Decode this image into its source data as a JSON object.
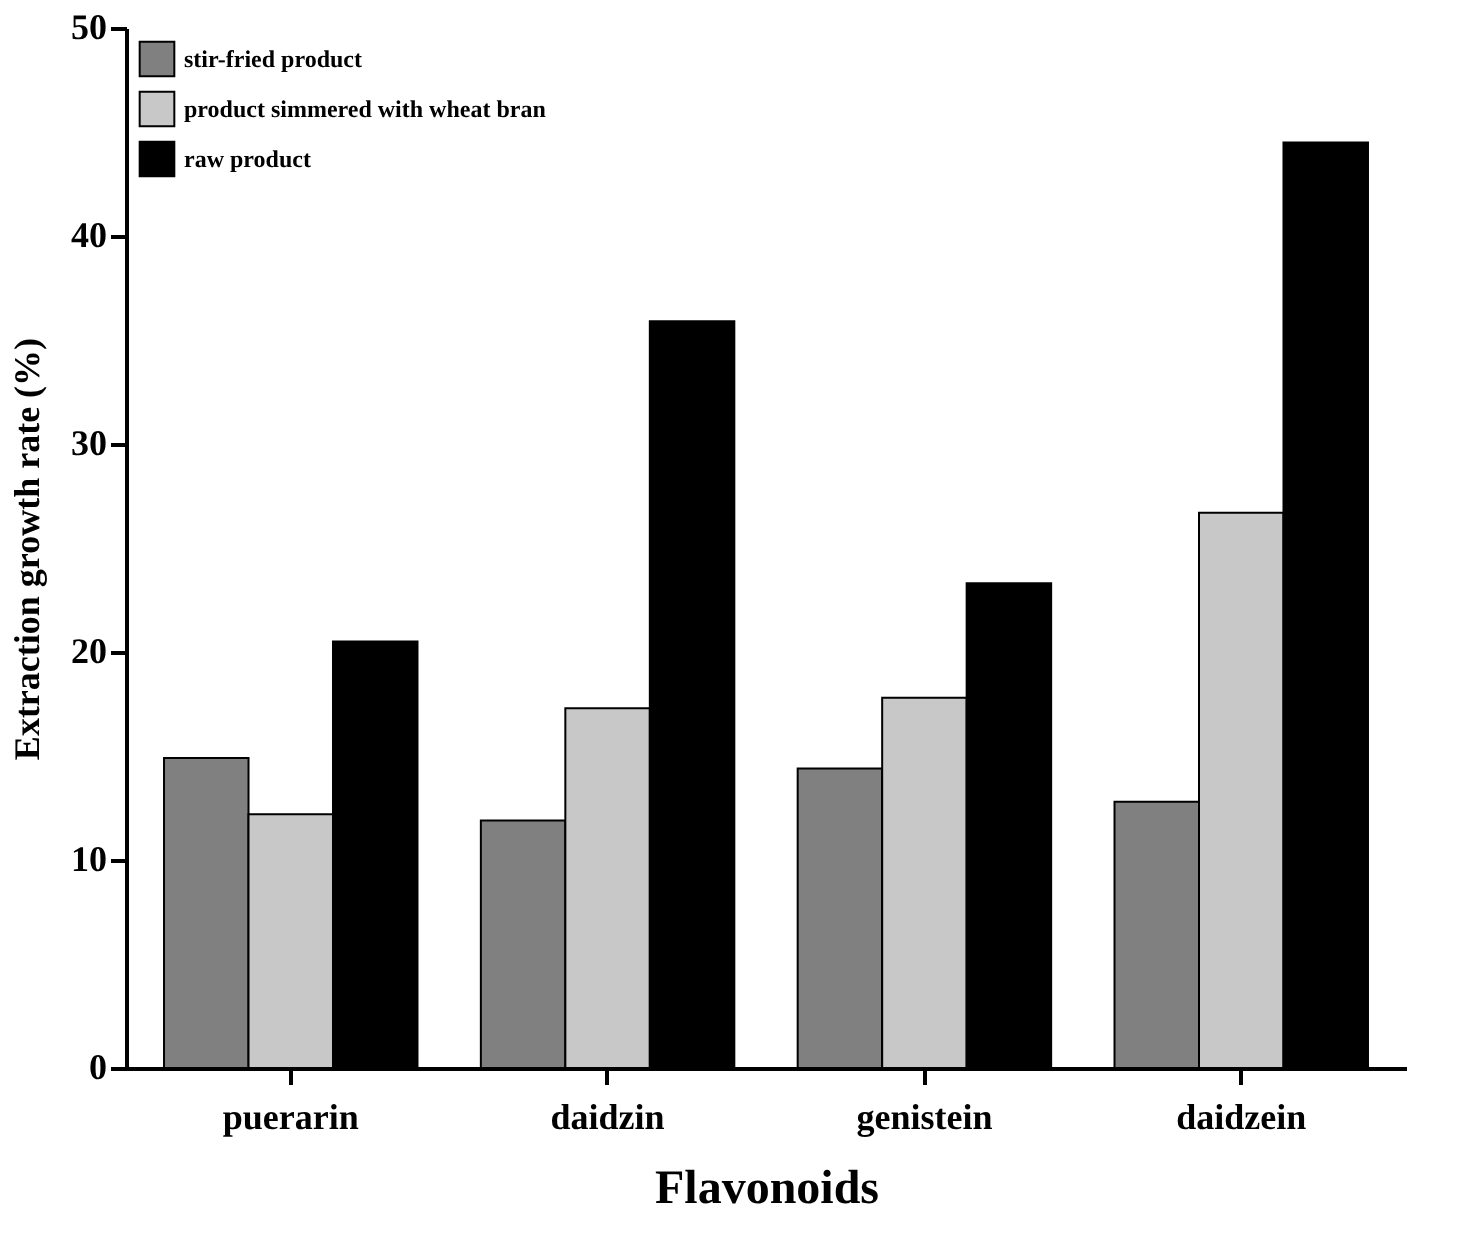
{
  "chart_data": {
    "type": "bar",
    "xlabel": "Flavonoids",
    "ylabel": "Extraction growth rate (%)",
    "categories": [
      "puerarin",
      "daidzin",
      "genistein",
      "daidzein"
    ],
    "series": [
      {
        "name": "stir-fried product",
        "color": "#808080",
        "values": [
          14.9,
          11.9,
          14.4,
          12.8
        ]
      },
      {
        "name": "product simmered with wheat bran",
        "color": "#c8c8c8",
        "values": [
          12.2,
          17.3,
          17.8,
          26.7
        ]
      },
      {
        "name": "raw product",
        "color": "#000000",
        "values": [
          20.5,
          35.9,
          23.3,
          44.5
        ]
      }
    ],
    "ylim": [
      0,
      50
    ],
    "yticks": [
      0,
      10,
      20,
      30,
      40,
      50
    ],
    "grid": false,
    "legend": "top left"
  }
}
